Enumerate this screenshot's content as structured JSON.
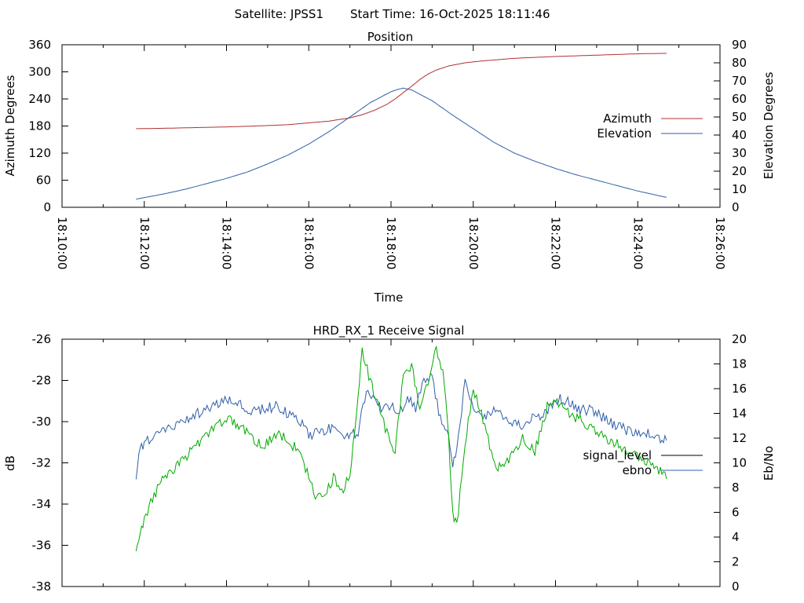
{
  "page": {
    "header_satellite": "Satellite: JPSS1",
    "header_start": "Start Time: 16-Oct-2025 18:11:46"
  },
  "chart_data": [
    {
      "type": "line",
      "title": "Position",
      "xlabel": "Time",
      "ylabel": "Azimuth Degrees",
      "y2label": "Elevation Degrees",
      "xlim_minutes": [
        10,
        26
      ],
      "x_tick_labels": [
        "18:10:00",
        "18:12:00",
        "18:14:00",
        "18:16:00",
        "18:18:00",
        "18:20:00",
        "18:22:00",
        "18:24:00",
        "18:26:00"
      ],
      "ylim": [
        0,
        360
      ],
      "y_ticks": [
        0,
        60,
        120,
        180,
        240,
        300,
        360
      ],
      "y2lim": [
        0,
        90
      ],
      "y2_ticks": [
        0,
        10,
        20,
        30,
        40,
        50,
        60,
        70,
        80,
        90
      ],
      "legend": [
        "Azimuth",
        "Elevation"
      ],
      "legend_position": "right",
      "colors": {
        "Azimuth": "#b03030",
        "Elevation": "#2f5fa8"
      },
      "series": [
        {
          "name": "Azimuth",
          "axis": "left",
          "x_minutes": [
            11.8,
            12.5,
            13.0,
            14.0,
            15.0,
            15.5,
            16.0,
            16.5,
            17.0,
            17.3,
            17.6,
            17.9,
            18.1,
            18.3,
            18.5,
            18.7,
            18.9,
            19.1,
            19.4,
            19.8,
            20.2,
            21.0,
            22.0,
            23.0,
            24.0,
            24.7
          ],
          "values": [
            174,
            175,
            176,
            178,
            181,
            183,
            187,
            191,
            198,
            205,
            215,
            228,
            240,
            254,
            268,
            283,
            295,
            304,
            313,
            320,
            324,
            330,
            334,
            337,
            340,
            341
          ]
        },
        {
          "name": "Elevation",
          "axis": "right",
          "x_minutes": [
            11.8,
            12.5,
            13.0,
            13.5,
            14.0,
            14.5,
            15.0,
            15.5,
            16.0,
            16.5,
            17.0,
            17.5,
            18.0,
            18.2,
            18.3,
            18.5,
            19.0,
            19.5,
            20.0,
            20.5,
            21.0,
            21.5,
            22.0,
            22.5,
            23.0,
            23.5,
            24.0,
            24.7
          ],
          "values": [
            4.5,
            7.5,
            10,
            13,
            16,
            19.5,
            24,
            29,
            35,
            42,
            50,
            58,
            64,
            65.5,
            66,
            65,
            59,
            51,
            43.5,
            36,
            30,
            25.5,
            21.5,
            18,
            15,
            12,
            9,
            5.5
          ]
        }
      ]
    },
    {
      "type": "line",
      "title": "HRD_RX_1 Receive Signal",
      "ylabel": "dB",
      "y2label": "Eb/No",
      "xlim_minutes": [
        10,
        26
      ],
      "ylim": [
        -38,
        -26
      ],
      "y_ticks": [
        -38,
        -36,
        -34,
        -32,
        -30,
        -28,
        -26
      ],
      "y2lim": [
        0,
        20
      ],
      "y2_ticks": [
        0,
        2,
        4,
        6,
        8,
        10,
        12,
        14,
        16,
        18,
        20
      ],
      "legend": [
        "signal_level",
        "ebno"
      ],
      "legend_position": "right",
      "colors": {
        "signal_level": "#000000",
        "ebno": "#2f5fa8",
        "ebno_trace2": "#00aa00"
      },
      "series": [
        {
          "name": "signal_level",
          "axis": "left",
          "x_minutes": [],
          "values": []
        },
        {
          "name": "ebno",
          "axis": "right",
          "x_minutes": [
            11.8,
            11.9,
            12.0,
            12.2,
            12.4,
            12.7,
            13.0,
            13.3,
            13.6,
            14.0,
            14.3,
            14.6,
            14.9,
            15.2,
            15.5,
            15.8,
            16.0,
            16.3,
            16.6,
            16.9,
            17.2,
            17.4,
            17.6,
            17.8,
            18.0,
            18.2,
            18.4,
            18.6,
            18.8,
            19.0,
            19.2,
            19.4,
            19.5,
            19.6,
            19.8,
            20.0,
            20.2,
            20.5,
            20.8,
            21.1,
            21.4,
            21.7,
            22.0,
            22.3,
            22.6,
            22.9,
            23.2,
            23.5,
            23.8,
            24.1,
            24.4,
            24.7
          ],
          "values": [
            8.5,
            11.5,
            11.5,
            12.2,
            12.6,
            13.0,
            13.5,
            14.0,
            14.5,
            15.0,
            14.7,
            14.1,
            14.3,
            14.6,
            14.0,
            13.3,
            12.2,
            12.5,
            12.8,
            12.0,
            12.6,
            16.0,
            15.0,
            14.4,
            14.6,
            14.0,
            15.2,
            14.5,
            16.5,
            17.0,
            13.5,
            12.0,
            9.5,
            11.5,
            16.5,
            14.5,
            13.5,
            14.5,
            13.5,
            13.0,
            13.6,
            13.8,
            15.2,
            15.0,
            14.2,
            14.3,
            13.6,
            13.0,
            12.6,
            12.4,
            12.2,
            11.8
          ]
        },
        {
          "name": "ebno_trace2",
          "axis": "right",
          "x_minutes": [
            11.8,
            11.9,
            12.0,
            12.2,
            12.4,
            12.7,
            13.0,
            13.3,
            13.6,
            14.0,
            14.3,
            14.6,
            14.9,
            15.2,
            15.5,
            15.8,
            16.0,
            16.2,
            16.4,
            16.6,
            16.8,
            17.0,
            17.2,
            17.3,
            17.5,
            17.7,
            17.9,
            18.1,
            18.3,
            18.5,
            18.7,
            18.9,
            19.1,
            19.3,
            19.4,
            19.5,
            19.6,
            19.8,
            20.0,
            20.2,
            20.4,
            20.6,
            20.9,
            21.2,
            21.5,
            21.8,
            22.0,
            22.3,
            22.6,
            22.9,
            23.2,
            23.5,
            23.8,
            24.1,
            24.4,
            24.7
          ],
          "values": [
            2.5,
            4.5,
            5.5,
            7.0,
            8.5,
            9.5,
            10.5,
            11.5,
            12.5,
            13.5,
            13.0,
            12.0,
            11.5,
            12.2,
            12.0,
            10.5,
            9.0,
            7.0,
            7.5,
            8.8,
            7.5,
            9.0,
            15.5,
            19.0,
            16.5,
            14.5,
            12.5,
            11.0,
            17.0,
            18.0,
            14.5,
            16.5,
            19.5,
            16.5,
            12.0,
            6.0,
            5.0,
            11.5,
            16.0,
            14.0,
            11.5,
            9.5,
            10.5,
            12.0,
            11.0,
            14.5,
            15.0,
            14.0,
            13.5,
            12.8,
            12.0,
            11.6,
            10.8,
            10.3,
            9.9,
            8.7
          ]
        }
      ]
    }
  ]
}
